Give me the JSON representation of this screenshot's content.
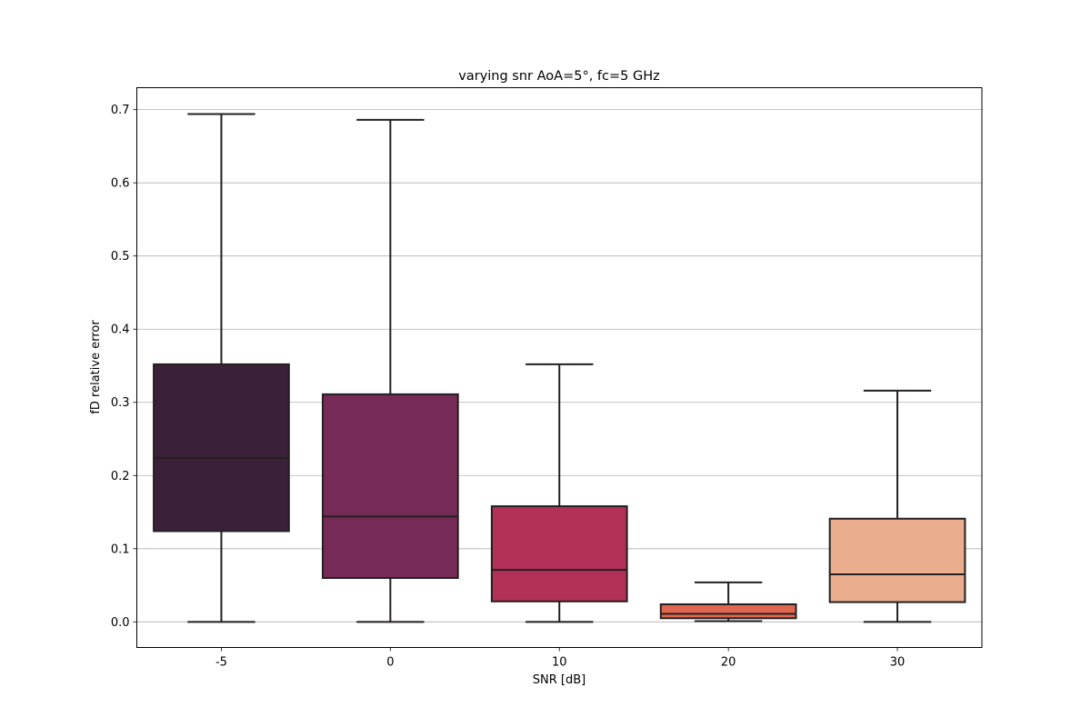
{
  "chart_data": {
    "type": "box",
    "title": "varying snr AoA=5°, fc=5 GHz",
    "xlabel": "SNR [dB]",
    "ylabel": "fD relative error",
    "ylim": [
      -0.035,
      0.73
    ],
    "yticks": [
      0.0,
      0.1,
      0.2,
      0.3,
      0.4,
      0.5,
      0.6,
      0.7
    ],
    "ytick_labels": [
      "0.0",
      "0.1",
      "0.2",
      "0.3",
      "0.4",
      "0.5",
      "0.6",
      "0.7"
    ],
    "grid": "horizontal",
    "categories": [
      "-5",
      "0",
      "10",
      "20",
      "30"
    ],
    "boxes": [
      {
        "whisker_low": 0.0,
        "q1": 0.124,
        "median": 0.224,
        "q3": 0.352,
        "whisker_high": 0.694,
        "color": "#3b2039"
      },
      {
        "whisker_low": 0.0,
        "q1": 0.06,
        "median": 0.144,
        "q3": 0.311,
        "whisker_high": 0.686,
        "color": "#762b57"
      },
      {
        "whisker_low": 0.0,
        "q1": 0.028,
        "median": 0.071,
        "q3": 0.158,
        "whisker_high": 0.352,
        "color": "#b33056"
      },
      {
        "whisker_low": 0.001,
        "q1": 0.005,
        "median": 0.011,
        "q3": 0.024,
        "whisker_high": 0.054,
        "color": "#e0674f"
      },
      {
        "whisker_low": 0.0,
        "q1": 0.027,
        "median": 0.065,
        "q3": 0.141,
        "whisker_high": 0.316,
        "color": "#eaae8f"
      }
    ]
  }
}
